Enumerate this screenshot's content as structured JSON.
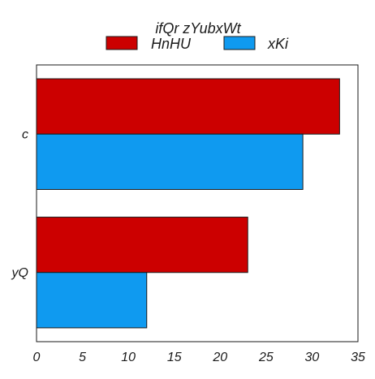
{
  "chart_data": {
    "type": "bar",
    "orientation": "horizontal",
    "categories": [
      "c",
      "yQ"
    ],
    "series": [
      {
        "name": "HnHU",
        "values": [
          33,
          23
        ],
        "color": "#cc0000"
      },
      {
        "name": "xKi",
        "values": [
          29,
          12
        ],
        "color": "#0f9af0"
      }
    ],
    "legend": {
      "title": "ifQr zYubxWt",
      "placement": "top-center"
    },
    "xlim": [
      0,
      35
    ],
    "xticks": [
      0,
      5,
      10,
      15,
      20,
      25,
      30,
      35
    ],
    "grid": false
  }
}
